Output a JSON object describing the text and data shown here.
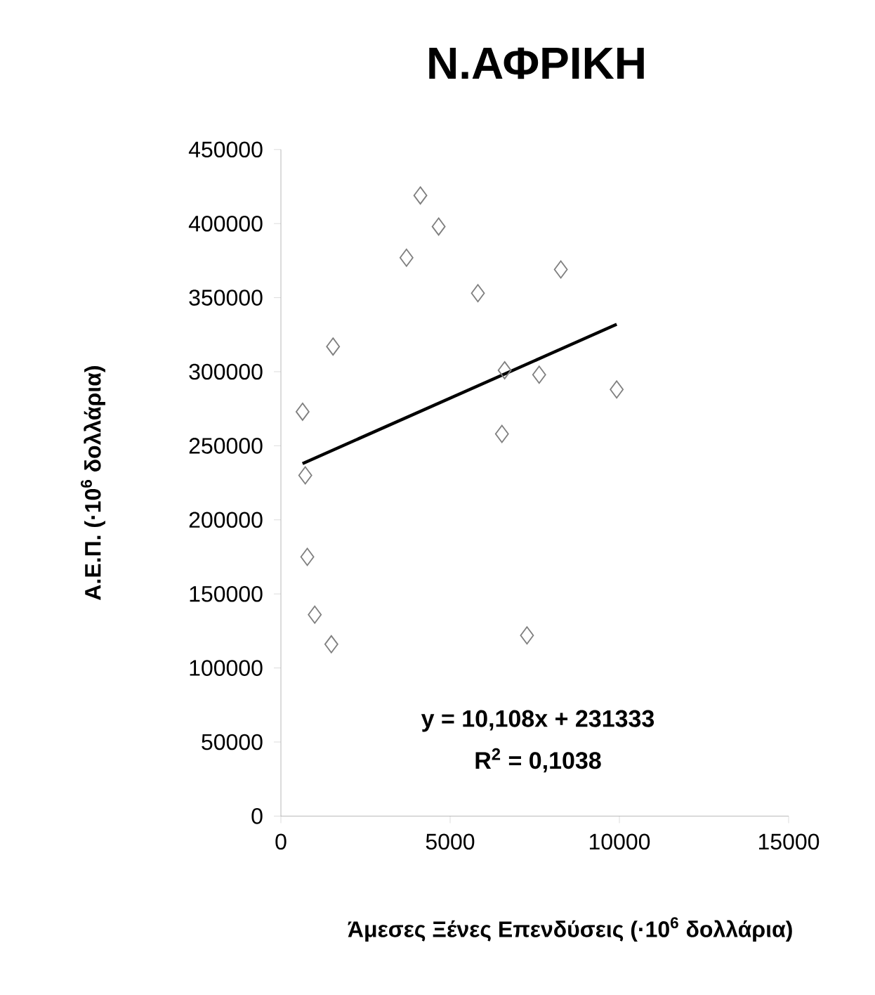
{
  "chart_data": {
    "type": "scatter",
    "title": "Ν.ΑΦΡΙΚΗ",
    "xlabel": "Άμεσες Ξένες Επενδύσεις (·10$^{6}$ δολλάρια)",
    "ylabel": "Α.Ε.Π.  (·10$^{6}$ δολλάρια)",
    "xlim": [
      0,
      15000
    ],
    "xticks": [
      0,
      5000,
      10000,
      15000
    ],
    "ylim": [
      0,
      450000
    ],
    "yticks": [
      0,
      50000,
      100000,
      150000,
      200000,
      250000,
      300000,
      350000,
      400000,
      450000
    ],
    "grid": false,
    "marker": "diamond",
    "series": [
      {
        "color": "#7f7f7f",
        "x": [
          4120,
          4660,
          3710,
          5820,
          8270,
          1540,
          6610,
          7630,
          9920,
          640,
          6530,
          720,
          780,
          1000,
          1490,
          7270
        ],
        "values": [
          419000,
          398000,
          377000,
          353000,
          369000,
          317000,
          301000,
          298000,
          288000,
          273000,
          258000,
          230000,
          175000,
          136000,
          116000,
          122000
        ]
      },
      {
        "type": "line",
        "marker": "none",
        "line_style": "solid",
        "color": "#000000",
        "x": [
          640,
          9920
        ],
        "values": [
          238000,
          332000
        ]
      }
    ],
    "annotations": [
      "y = 10,108x + 231333",
      "R$^{2}$ = 0,1038"
    ]
  }
}
